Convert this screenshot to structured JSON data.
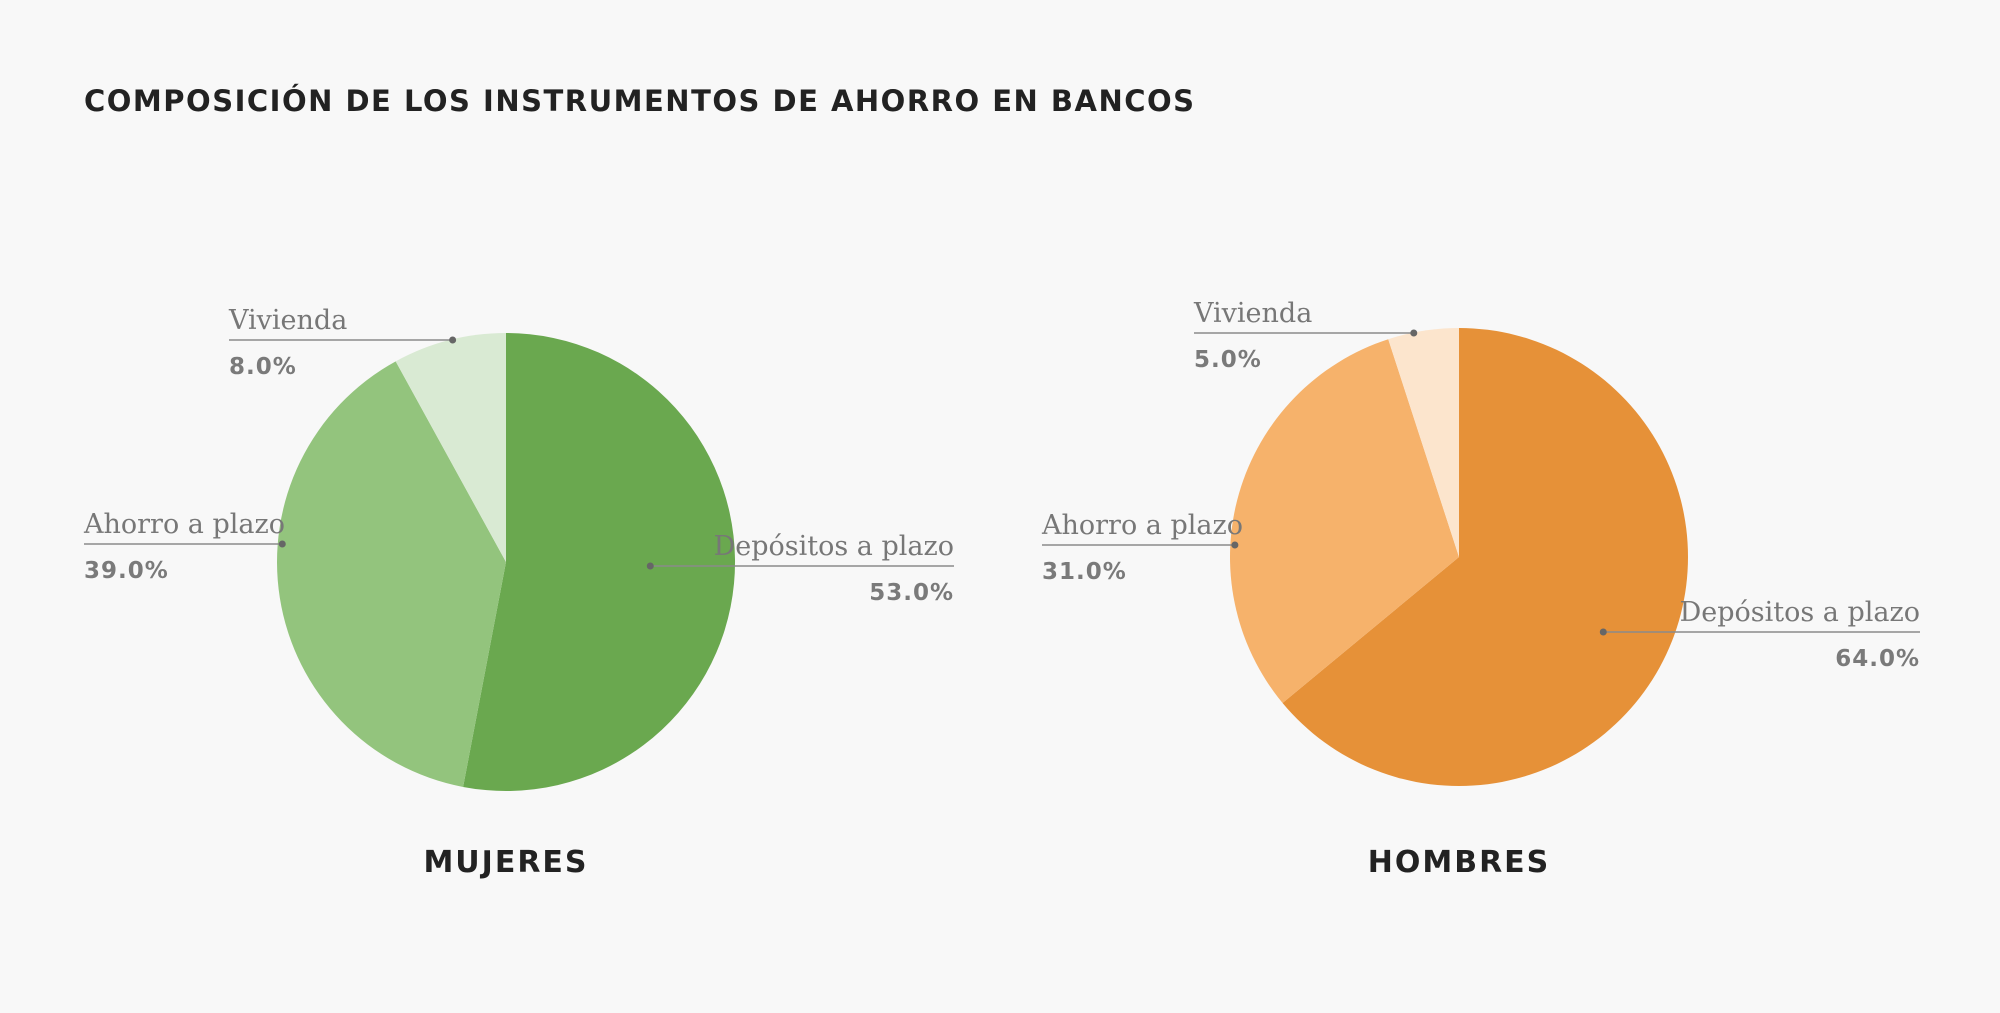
{
  "page": {
    "title": "COMPOSICIÓN DE LOS INSTRUMENTOS DE AHORRO EN BANCOS"
  },
  "chart_data": [
    {
      "type": "pie",
      "title": "MUJERES",
      "categories": [
        "Depósitos a plazo",
        "Ahorro a plazo",
        "Vivienda"
      ],
      "values": [
        53.0,
        39.0,
        8.0
      ],
      "value_labels": [
        "53.0%",
        "39.0%",
        "8.0%"
      ],
      "colors": [
        "#6aa84f",
        "#93c47d",
        "#d9ead3"
      ],
      "start": "12 o'clock",
      "direction": "clockwise",
      "legend": "none"
    },
    {
      "type": "pie",
      "title": "HOMBRES",
      "categories": [
        "Depósitos a plazo",
        "Ahorro a plazo",
        "Vivienda"
      ],
      "values": [
        64.0,
        31.0,
        5.0
      ],
      "value_labels": [
        "64.0%",
        "31.0%",
        "5.0%"
      ],
      "colors": [
        "#e69138",
        "#f6b26b",
        "#fce5cd"
      ],
      "start": "12 o'clock",
      "direction": "clockwise",
      "legend": "none"
    }
  ]
}
